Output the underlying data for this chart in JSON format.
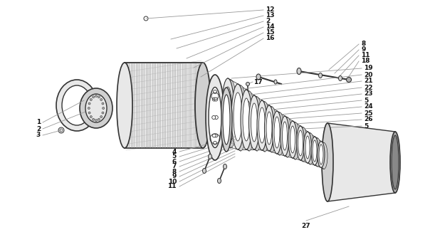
{
  "background_color": "#ffffff",
  "figsize": [
    6.18,
    3.4
  ],
  "dpi": 100,
  "lc": "#999999",
  "cc": "#333333",
  "fc_light": "#e8e8e8",
  "fc_mid": "#d0d0d0",
  "fc_dark": "#b0b0b0",
  "lw_main": 1.0,
  "label_fs": 6.5,
  "label_color": "#111111"
}
